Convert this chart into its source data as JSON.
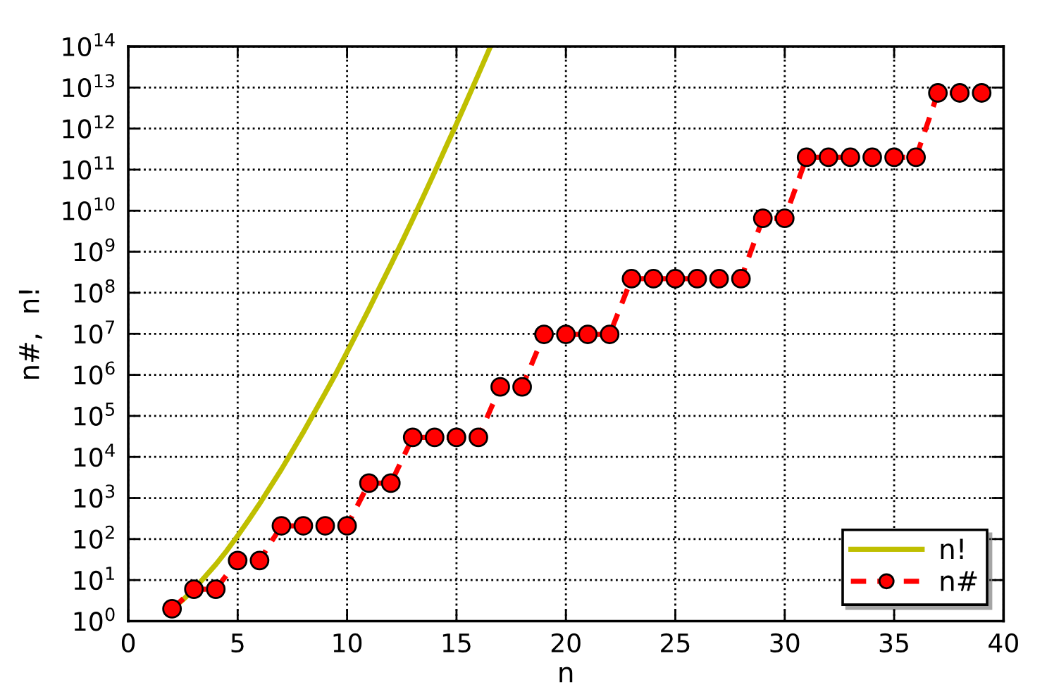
{
  "chart_data": {
    "type": "line",
    "xlabel": "n",
    "ylabel": "n#,  n!",
    "log": "y",
    "grid": true,
    "legend": "bottom right",
    "xlim": [
      0,
      40
    ],
    "xticks": [
      0,
      5,
      10,
      15,
      20,
      25,
      30,
      35,
      40
    ],
    "ylim": [
      1,
      100000000000000.0
    ],
    "yticks": [
      {
        "value": 1,
        "label": "10$^{0}$"
      },
      {
        "value": 10,
        "label": "10$^{1}$"
      },
      {
        "value": 100,
        "label": "10$^{2}$"
      },
      {
        "value": 1000,
        "label": "10$^{3}$"
      },
      {
        "value": 10000,
        "label": "10$^{4}$"
      },
      {
        "value": 100000,
        "label": "10$^{5}$"
      },
      {
        "value": 1000000,
        "label": "10$^{6}$"
      },
      {
        "value": 10000000,
        "label": "10$^{7}$"
      },
      {
        "value": 100000000,
        "label": "10$^{8}$"
      },
      {
        "value": 1000000000,
        "label": "10$^{9}$"
      },
      {
        "value": 10000000000,
        "label": "10$^{10}$"
      },
      {
        "value": 100000000000,
        "label": "10$^{11}$"
      },
      {
        "value": 1000000000000,
        "label": "10$^{12}$"
      },
      {
        "value": 10000000000000,
        "label": "10$^{13}$"
      },
      {
        "value": 100000000000000,
        "label": "10$^{14}$"
      }
    ],
    "series": [
      {
        "name": "n!",
        "color": "#bfbf00",
        "marker": "none",
        "line_style": "solid",
        "x": [
          2,
          2.5,
          3,
          3.5,
          4,
          4.5,
          5,
          5.5,
          6,
          6.5,
          7,
          7.5,
          8,
          8.5,
          9,
          9.5,
          10,
          10.5,
          11,
          11.5,
          12,
          12.5,
          13,
          13.5,
          14,
          14.5,
          15,
          15.5,
          16,
          16.5,
          16.55
        ],
        "values": [
          2,
          3.3,
          6,
          12,
          24,
          52,
          120,
          290,
          720,
          1900,
          5000,
          14000,
          40000,
          120000,
          360000,
          1100000,
          3600000,
          12000000,
          40000000,
          140000000,
          480000000,
          1700000000,
          6200000000,
          23000000000,
          87000000000,
          340000000000,
          1300000000000,
          5200000000000,
          21000000000000,
          86000000000000,
          99000000000000
        ]
      },
      {
        "name": "n#",
        "color": "#ff0000",
        "marker": "circle",
        "line_style": "dashed",
        "x": [
          2,
          3,
          4,
          5,
          6,
          7,
          8,
          9,
          10,
          11,
          12,
          13,
          14,
          15,
          16,
          17,
          18,
          19,
          20,
          21,
          22,
          23,
          24,
          25,
          26,
          27,
          28,
          29,
          30,
          31,
          32,
          33,
          34,
          35,
          36,
          37,
          38,
          39
        ],
        "values": [
          2,
          6,
          6,
          30,
          30,
          210,
          210,
          210,
          210,
          2300,
          2300,
          30000,
          30000,
          30000,
          30000,
          510000,
          510000,
          9700000,
          9700000,
          9700000,
          9700000,
          220000000,
          220000000,
          220000000,
          220000000,
          220000000,
          220000000,
          6500000000,
          6500000000,
          200000000000,
          200000000000,
          200000000000,
          200000000000,
          200000000000,
          200000000000,
          7400000000000,
          7400000000000,
          7400000000000
        ]
      }
    ]
  }
}
